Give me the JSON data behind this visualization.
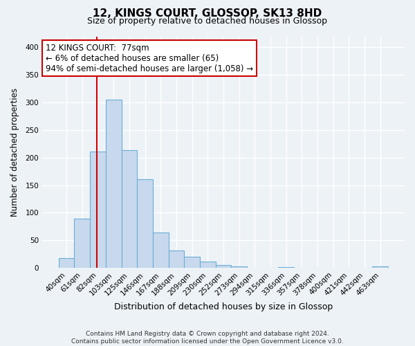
{
  "title": "12, KINGS COURT, GLOSSOP, SK13 8HD",
  "subtitle": "Size of property relative to detached houses in Glossop",
  "xlabel": "Distribution of detached houses by size in Glossop",
  "ylabel": "Number of detached properties",
  "categories": [
    "40sqm",
    "61sqm",
    "82sqm",
    "103sqm",
    "125sqm",
    "146sqm",
    "167sqm",
    "188sqm",
    "209sqm",
    "230sqm",
    "252sqm",
    "273sqm",
    "294sqm",
    "315sqm",
    "336sqm",
    "357sqm",
    "378sqm",
    "400sqm",
    "421sqm",
    "442sqm",
    "463sqm"
  ],
  "values": [
    17,
    89,
    211,
    305,
    214,
    161,
    64,
    31,
    20,
    11,
    5,
    2,
    0,
    0,
    1,
    0,
    0,
    0,
    0,
    0,
    2
  ],
  "bar_color": "#c8d9ed",
  "bar_edge_color": "#6aadd5",
  "vline_color": "#cc0000",
  "vline_x_index": 1.92,
  "annotation_title": "12 KINGS COURT:  77sqm",
  "annotation_line1": "← 6% of detached houses are smaller (65)",
  "annotation_line2": "94% of semi-detached houses are larger (1,058) →",
  "annotation_box_facecolor": "#ffffff",
  "annotation_box_edgecolor": "#cc0000",
  "ylim": [
    0,
    420
  ],
  "yticks": [
    0,
    50,
    100,
    150,
    200,
    250,
    300,
    350,
    400
  ],
  "footer_line1": "Contains HM Land Registry data © Crown copyright and database right 2024.",
  "footer_line2": "Contains public sector information licensed under the Open Government Licence v3.0.",
  "background_color": "#edf2f7",
  "grid_color": "#ffffff",
  "title_fontsize": 11,
  "subtitle_fontsize": 9,
  "tick_fontsize": 7.5,
  "ylabel_fontsize": 8.5,
  "xlabel_fontsize": 9
}
